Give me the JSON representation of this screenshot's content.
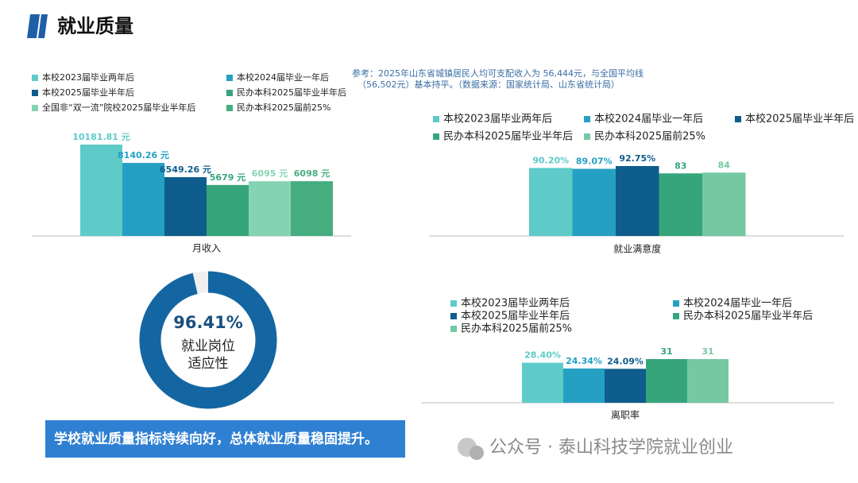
{
  "header": {
    "title": "就业质量"
  },
  "chart_data": [
    {
      "type": "bar",
      "note": "参考：2025年山东省城镇居民人均可支配收入为 56,444元，与全国平均线",
      "note_2": "（56,502元）基本持平。（数据来源：国家统计局、山东省统计局）",
      "categories": [
        "月收入"
      ],
      "series": [
        {
          "name": "本校2023届毕业两年后",
          "color": "#5ecbc9",
          "values": [
            10181.81
          ],
          "value_labels": [
            "10181.81 元"
          ]
        },
        {
          "name": "本校2024届毕业一年后",
          "color": "#25a0c3",
          "values": [
            8140.26
          ],
          "value_labels": [
            "8140.26 元"
          ]
        },
        {
          "name": "本校2025届毕业半年后",
          "color": "#0e5d8c",
          "values": [
            6549.26
          ],
          "value_labels": [
            "6549.26 元"
          ]
        },
        {
          "name": "民办本科2025届毕业半年后",
          "color": "#36a57c",
          "values": [
            5679
          ],
          "value_labels": [
            "5679 元"
          ]
        },
        {
          "name": "全国非“双一流”院校2025届毕业半年后",
          "color": "#86d3b4",
          "values": [
            6095
          ],
          "value_labels": [
            "6095 元"
          ]
        },
        {
          "name": "民办本科2025届前25%",
          "color": "#46ad7f",
          "values": [
            6098
          ],
          "value_labels": [
            "6098 元"
          ]
        }
      ]
    },
    {
      "type": "bar",
      "categories": [
        "就业满意度"
      ],
      "series": [
        {
          "name": "本校2023届毕业两年后",
          "color": "#5ecbc9",
          "values": [
            90.2
          ],
          "value_labels": [
            "90.20%"
          ]
        },
        {
          "name": "本校2024届毕业一年后",
          "color": "#25a0c3",
          "values": [
            89.07
          ],
          "value_labels": [
            "89.07%"
          ]
        },
        {
          "name": "本校2025届毕业半年后",
          "color": "#0e5d8c",
          "values": [
            92.75
          ],
          "value_labels": [
            "92.75%"
          ]
        },
        {
          "name": "民办本科2025届毕业半年后",
          "color": "#36a57c",
          "values": [
            83
          ]
        },
        {
          "name": "民办本科2025届前25%",
          "color": "#74c9a2",
          "values": [
            84
          ]
        }
      ]
    },
    {
      "type": "donut",
      "value": 96.41,
      "value_label": "96.41%",
      "label": "就业岗位适应性",
      "color": "#1466a2"
    },
    {
      "type": "bar",
      "categories": [
        "离职率"
      ],
      "series": [
        {
          "name": "本校2023届毕业两年后",
          "color": "#5ecbc9",
          "values": [
            28.4
          ],
          "value_labels": [
            "28.40%"
          ]
        },
        {
          "name": "本校2024届毕业一年后",
          "color": "#25a0c3",
          "values": [
            24.34
          ],
          "value_labels": [
            "24.34%"
          ]
        },
        {
          "name": "本校2025届毕业半年后",
          "color": "#0e5d8c",
          "values": [
            24.09
          ],
          "value_labels": [
            "24.09%"
          ]
        },
        {
          "name": "民办本科2025届毕业半年后",
          "color": "#36a57c",
          "values": [
            31
          ]
        },
        {
          "name": "民办本科2025届前25%",
          "color": "#74c9a2",
          "values": [
            31
          ]
        }
      ]
    }
  ],
  "banner": "学校就业质量指标持续向好，总体就业质量稳固提升。",
  "watermark": "公众号 · 泰山科技学院就业创业"
}
